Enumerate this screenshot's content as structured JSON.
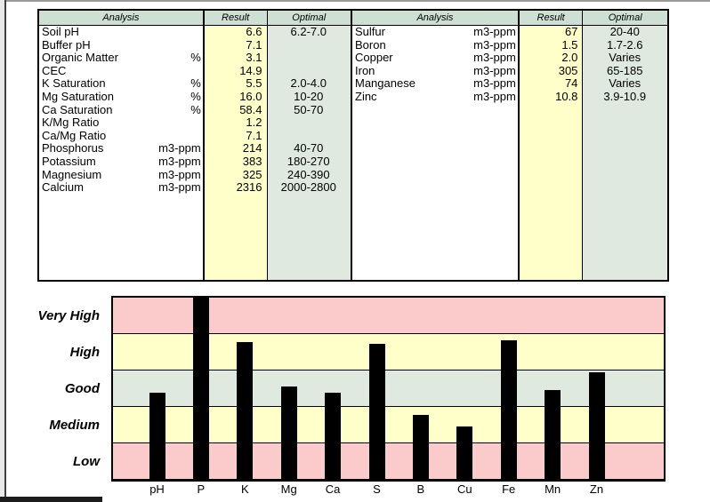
{
  "report": {
    "tables": [
      {
        "id": "primary-analysis",
        "headers": {
          "analysis": "Analysis",
          "result": "Result",
          "optimal": "Optimal"
        },
        "rows": [
          {
            "name": "Soil pH",
            "unit": "",
            "result": "6.6",
            "optimal": "6.2-7.0"
          },
          {
            "name": "Buffer pH",
            "unit": "",
            "result": "7.1",
            "optimal": ""
          },
          {
            "name": "Organic Matter",
            "unit": "%",
            "result": "3.1",
            "optimal": ""
          },
          {
            "name": "CEC",
            "unit": "",
            "result": "14.9",
            "optimal": ""
          },
          {
            "name": "K Saturation",
            "unit": "%",
            "result": "5.5",
            "optimal": "2.0-4.0"
          },
          {
            "name": "Mg Saturation",
            "unit": "%",
            "result": "16.0",
            "optimal": "10-20"
          },
          {
            "name": "Ca Saturation",
            "unit": "%",
            "result": "58.4",
            "optimal": "50-70"
          },
          {
            "name": "K/Mg Ratio",
            "unit": "",
            "result": "1.2",
            "optimal": ""
          },
          {
            "name": "Ca/Mg Ratio",
            "unit": "",
            "result": "7.1",
            "optimal": ""
          },
          {
            "name": "Phosphorus",
            "unit": "m3-ppm",
            "result": "214",
            "optimal": "40-70"
          },
          {
            "name": "Potassium",
            "unit": "m3-ppm",
            "result": "383",
            "optimal": "180-270"
          },
          {
            "name": "Magnesium",
            "unit": "m3-ppm",
            "result": "325",
            "optimal": "240-390"
          },
          {
            "name": "Calcium",
            "unit": "m3-ppm",
            "result": "2316",
            "optimal": "2000-2800"
          }
        ]
      },
      {
        "id": "micronutrient-analysis",
        "headers": {
          "analysis": "Analysis",
          "result": "Result",
          "optimal": "Optimal"
        },
        "rows": [
          {
            "name": "Sulfur",
            "unit": "m3-ppm",
            "result": "67",
            "optimal": "20-40"
          },
          {
            "name": "Boron",
            "unit": "m3-ppm",
            "result": "1.5",
            "optimal": "1.7-2.6"
          },
          {
            "name": "Copper",
            "unit": "m3-ppm",
            "result": "2.0",
            "optimal": "Varies"
          },
          {
            "name": "Iron",
            "unit": "m3-ppm",
            "result": "305",
            "optimal": "65-185"
          },
          {
            "name": "Manganese",
            "unit": "m3-ppm",
            "result": "74",
            "optimal": "Varies"
          },
          {
            "name": "Zinc",
            "unit": "m3-ppm",
            "result": "10.8",
            "optimal": "3.9-10.9"
          }
        ]
      }
    ]
  },
  "chart_data": {
    "type": "bar",
    "title": "",
    "xlabel": "",
    "ylabel": "",
    "categories": [
      "pH",
      "P",
      "K",
      "Mg",
      "Ca",
      "S",
      "B",
      "Cu",
      "Fe",
      "Mn",
      "Zn"
    ],
    "values": [
      2.39,
      5.0,
      3.78,
      2.55,
      2.38,
      3.74,
      1.79,
      1.47,
      3.83,
      2.47,
      2.95
    ],
    "value_units": "rating-band units (each horizontal band = 1 unit, scale 0-5 from Low bottom to Very High top)",
    "ylim": [
      0,
      5
    ],
    "bands_top_to_bottom": [
      {
        "label": "Very High",
        "color": "#FBCBCB"
      },
      {
        "label": "High",
        "color": "#FFFFC9"
      },
      {
        "label": "Good",
        "color": "#DFE9E0"
      },
      {
        "label": "Medium",
        "color": "#FFFFC9"
      },
      {
        "label": "Low",
        "color": "#FBCBCB"
      }
    ],
    "bar_color": "#000000",
    "grid": "horizontal band boundary lines, black",
    "legend": "none"
  },
  "colors": {
    "header_green": "#CDE0D3",
    "result_yellow": "#FFFFC9",
    "optimal_green": "#DFE9E0",
    "table_border": "#000000"
  }
}
